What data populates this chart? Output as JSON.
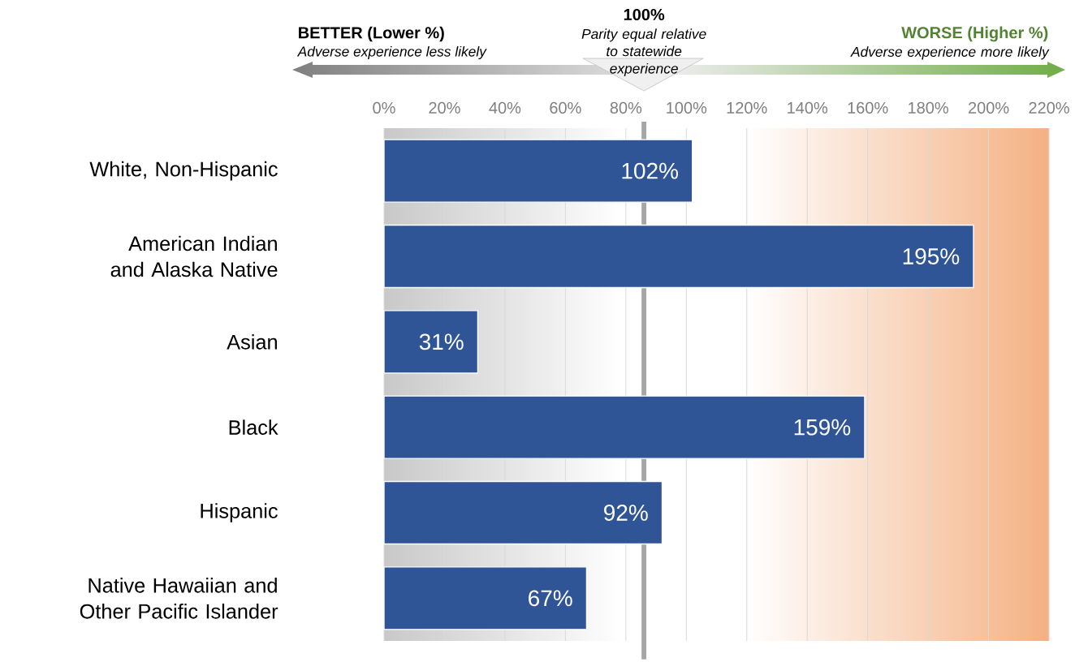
{
  "chart_data": {
    "type": "bar",
    "orientation": "horizontal",
    "categories": [
      "White, Non-Hispanic",
      "American Indian and Alaska Native",
      "Asian",
      "Black",
      "Hispanic",
      "Native Hawaiian and Other Pacific Islander"
    ],
    "values": [
      102,
      195,
      31,
      159,
      92,
      67
    ],
    "value_labels": [
      "102%",
      "195%",
      "31%",
      "159%",
      "92%",
      "67%"
    ],
    "color": "#2f5597",
    "xlim": [
      0,
      220
    ],
    "xticks": [
      {
        "value": 0,
        "label": "0%"
      },
      {
        "value": 20,
        "label": "20%"
      },
      {
        "value": 40,
        "label": "40%"
      },
      {
        "value": 60,
        "label": "60%"
      },
      {
        "value": 80,
        "label": "80%"
      },
      {
        "value": 100,
        "label": "100%"
      },
      {
        "value": 120,
        "label": "120%"
      },
      {
        "value": 140,
        "label": "140%"
      },
      {
        "value": 160,
        "label": "160%"
      },
      {
        "value": 180,
        "label": "180%"
      },
      {
        "value": 200,
        "label": "200%"
      },
      {
        "value": 220,
        "label": "220%"
      }
    ],
    "grid": "x",
    "ref_lines": [
      {
        "axis": "x",
        "value": 86,
        "color": "#a6a6a6"
      }
    ],
    "bands": [
      {
        "axis": "x",
        "from": 0,
        "to": 80,
        "color": "#c8c8c8"
      },
      {
        "axis": "x",
        "from": 120,
        "to": 220,
        "color": "#f4b183"
      }
    ],
    "annotations": [
      "100%",
      "BETTER (Lower %)",
      "Adverse experience less likely",
      "Parity equal relative to statewide experience",
      "WORSE (Higher %)",
      "Adverse experience more likely"
    ]
  }
}
